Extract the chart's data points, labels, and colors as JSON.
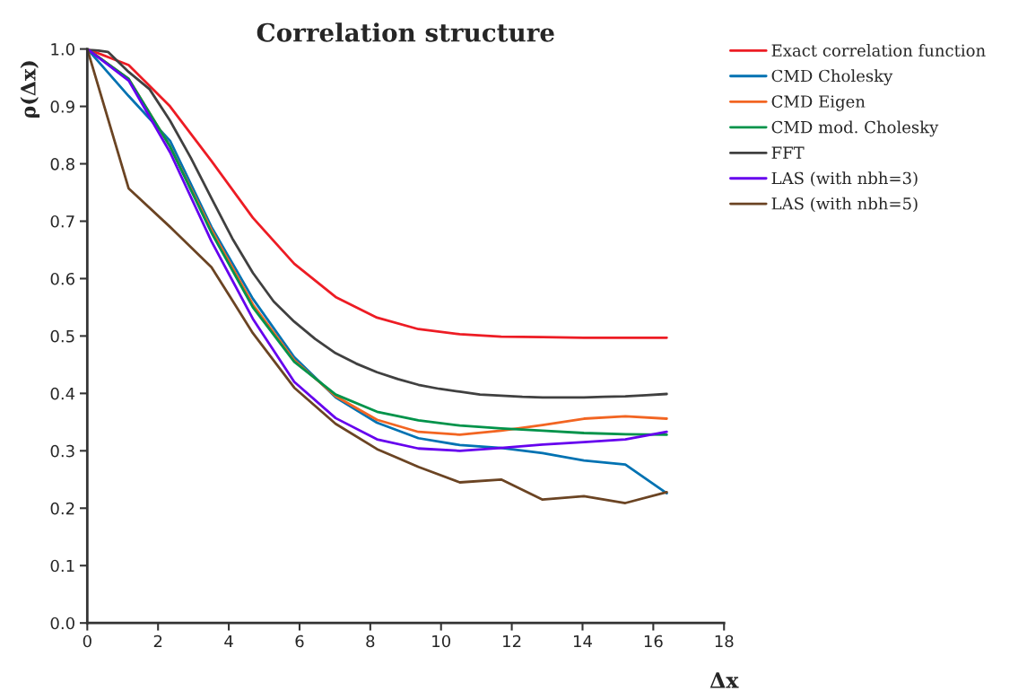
{
  "chart_data": {
    "type": "line",
    "title": "Correlation structure",
    "xlabel": "Δx",
    "ylabel": "ρ(Δx)",
    "x": [
      0,
      1.17,
      2.34,
      3.51,
      4.68,
      5.85,
      7.02,
      8.19,
      9.36,
      10.53,
      11.7,
      12.87,
      14.04,
      15.21,
      16.38
    ],
    "xlim": [
      0,
      18
    ],
    "xticks": [
      0,
      2,
      4,
      6,
      8,
      10,
      12,
      14,
      16,
      18
    ],
    "ylim": [
      0,
      1.0
    ],
    "yticks": [
      {
        "value": 0,
        "label": "0.0"
      },
      0.1,
      0.2,
      0.3,
      0.4,
      0.5,
      0.6,
      0.7,
      0.8,
      0.9,
      {
        "value": 1.0,
        "label": "1.0"
      }
    ],
    "grid": false,
    "legend": "top right",
    "marker": "none",
    "line_style": "solid",
    "series": [
      {
        "name": "Exact correlation function",
        "color": "#ed1c24",
        "values": [
          1.0,
          0.972,
          0.9,
          0.805,
          0.706,
          0.626,
          0.568,
          0.532,
          0.512,
          0.503,
          0.499,
          0.498,
          0.497,
          0.497,
          0.497
        ]
      },
      {
        "name": "CMD Cholesky",
        "color": "#0072b2",
        "values": [
          1.0,
          0.918,
          0.84,
          0.69,
          0.565,
          0.463,
          0.393,
          0.349,
          0.322,
          0.31,
          0.305,
          0.296,
          0.283,
          0.276,
          0.226
        ]
      },
      {
        "name": "CMD Eigen",
        "color": "#f26522",
        "values": [
          1.0,
          0.948,
          0.83,
          0.685,
          0.555,
          0.458,
          0.395,
          0.354,
          0.333,
          0.328,
          0.335,
          0.345,
          0.356,
          0.36,
          0.356
        ]
      },
      {
        "name": "CMD mod. Cholesky",
        "color": "#00934a",
        "values": [
          1.0,
          0.948,
          0.83,
          0.68,
          0.55,
          0.455,
          0.398,
          0.368,
          0.353,
          0.344,
          0.339,
          0.335,
          0.331,
          0.329,
          0.328
        ]
      },
      {
        "name": "FFT",
        "color": "#404040",
        "x": [
          0,
          0.585,
          1.17,
          1.76,
          2.34,
          2.93,
          3.51,
          4.1,
          4.68,
          5.27,
          5.85,
          6.44,
          7.02,
          7.6,
          8.19,
          8.78,
          9.36,
          9.95,
          10.53,
          11.1,
          11.7,
          12.3,
          12.87,
          13.46,
          14.04,
          14.6,
          15.21,
          15.8,
          16.38
        ],
        "values": [
          1.0,
          0.995,
          0.96,
          0.93,
          0.875,
          0.81,
          0.74,
          0.67,
          0.61,
          0.56,
          0.525,
          0.495,
          0.47,
          0.452,
          0.437,
          0.425,
          0.415,
          0.408,
          0.403,
          0.398,
          0.396,
          0.394,
          0.393,
          0.393,
          0.393,
          0.394,
          0.395,
          0.397,
          0.399
        ]
      },
      {
        "name": "LAS (with nbh=3)",
        "color": "#6600ee",
        "values": [
          1.0,
          0.945,
          0.82,
          0.665,
          0.53,
          0.42,
          0.357,
          0.32,
          0.304,
          0.3,
          0.305,
          0.311,
          0.315,
          0.32,
          0.333
        ]
      },
      {
        "name": "LAS (with nbh=5)",
        "color": "#6b4423",
        "values": [
          1.0,
          0.757,
          0.69,
          0.62,
          0.505,
          0.41,
          0.347,
          0.303,
          0.272,
          0.245,
          0.25,
          0.215,
          0.221,
          0.209,
          0.228
        ]
      }
    ]
  }
}
